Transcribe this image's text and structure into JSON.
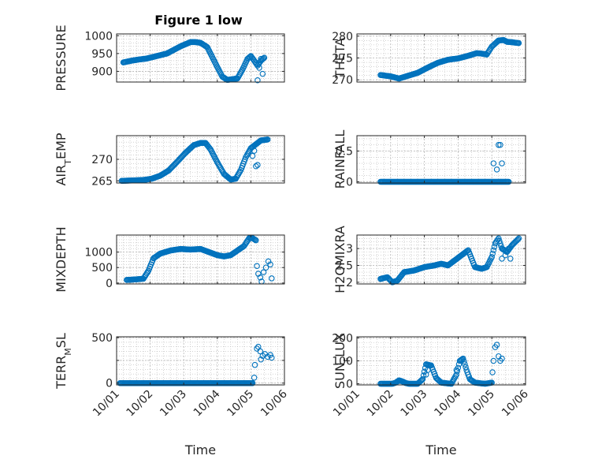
{
  "figure": {
    "title": "Figure 1 low"
  },
  "colors": {
    "marker": "#0072BD",
    "axis": "#262626",
    "grid": "#b8b8b8",
    "background": "#ffffff"
  },
  "chart_data": [
    {
      "type": "scatter",
      "ylabel": "PRESSURE",
      "ylim": [
        870,
        1005
      ],
      "yticks": [
        900,
        950,
        1000
      ],
      "ytick_labels": [
        "900",
        "950",
        "1000"
      ],
      "xlim": [
        0,
        5
      ],
      "xticks": [
        0,
        1,
        2,
        3,
        4,
        5
      ],
      "xtick_labels": [
        "10/01",
        "10/02",
        "10/03",
        "10/04",
        "10/05",
        "10/06"
      ],
      "show_xtick_labels": false,
      "xlabel": "",
      "grid": true,
      "anchors_x": [
        0.2,
        0.45,
        0.65,
        0.9,
        1.2,
        1.5,
        1.9,
        2.2,
        2.35,
        2.5,
        2.7,
        2.85,
        3.0,
        3.15,
        3.3,
        3.45,
        3.6,
        3.75,
        3.9,
        4.0,
        4.1,
        4.2,
        4.3,
        4.42
      ],
      "anchors_y": [
        925,
        930,
        933,
        936,
        943,
        950,
        970,
        982,
        982,
        980,
        968,
        940,
        912,
        885,
        876,
        878,
        880,
        905,
        935,
        943,
        930,
        916,
        930,
        940
      ],
      "extra_points": [
        [
          4.2,
          875
        ],
        [
          4.25,
          910
        ],
        [
          4.35,
          893
        ],
        [
          4.3,
          935
        ]
      ]
    },
    {
      "type": "scatter",
      "ylabel": "THETA",
      "ylim": [
        269.5,
        280.5
      ],
      "yticks": [
        270,
        275,
        280
      ],
      "ytick_labels": [
        "270",
        "275",
        "280"
      ],
      "xlim": [
        0,
        5
      ],
      "xticks": [
        0,
        1,
        2,
        3,
        4,
        5
      ],
      "xtick_labels": [
        "10/01",
        "10/02",
        "10/03",
        "10/04",
        "10/05",
        "10/06"
      ],
      "show_xtick_labels": false,
      "xlabel": "",
      "grid": true,
      "anchors_x": [
        0.7,
        1.0,
        1.25,
        1.5,
        1.8,
        2.1,
        2.4,
        2.7,
        3.0,
        3.3,
        3.55,
        3.7,
        3.85,
        4.0,
        4.2,
        4.35,
        4.45,
        4.6,
        4.8
      ],
      "anchors_y": [
        271.1,
        270.8,
        270.3,
        270.9,
        271.6,
        272.8,
        273.9,
        274.6,
        274.9,
        275.5,
        276.1,
        276.0,
        275.8,
        277.6,
        279.0,
        279.1,
        278.7,
        278.6,
        278.4
      ],
      "extra_points": []
    },
    {
      "type": "scatter",
      "ylabel": "AIR_TEMP",
      "ylim": [
        264.5,
        275.5
      ],
      "yticks": [
        265,
        270
      ],
      "ytick_labels": [
        "265",
        "270"
      ],
      "xlim": [
        0,
        5
      ],
      "xticks": [
        0,
        1,
        2,
        3,
        4,
        5
      ],
      "xtick_labels": [
        "10/01",
        "10/02",
        "10/03",
        "10/04",
        "10/05",
        "10/06"
      ],
      "show_xtick_labels": false,
      "xlabel": "",
      "grid": true,
      "anchors_x": [
        0.15,
        0.5,
        0.8,
        1.05,
        1.3,
        1.55,
        1.8,
        2.05,
        2.3,
        2.5,
        2.65,
        2.8,
        3.0,
        3.2,
        3.4,
        3.55,
        3.7,
        3.85,
        4.0,
        4.15,
        4.3,
        4.5
      ],
      "anchors_y": [
        265.0,
        265.1,
        265.2,
        265.5,
        266.2,
        267.4,
        269.4,
        271.5,
        273.3,
        273.8,
        273.8,
        272.3,
        269.3,
        266.6,
        265.3,
        265.5,
        267.5,
        270.5,
        272.6,
        273.5,
        274.4,
        274.6
      ],
      "extra_points": [
        [
          4.15,
          268.4
        ],
        [
          4.2,
          268.7
        ],
        [
          4.05,
          270.8
        ],
        [
          4.1,
          272.0
        ]
      ]
    },
    {
      "type": "scatter",
      "ylabel": "RAINFALL",
      "ylim": [
        -0.02,
        0.75
      ],
      "yticks": [
        0,
        0.5
      ],
      "ytick_labels": [
        "0",
        "0.5"
      ],
      "xlim": [
        0,
        5
      ],
      "xticks": [
        0,
        1,
        2,
        3,
        4,
        5
      ],
      "xtick_labels": [
        "10/01",
        "10/02",
        "10/03",
        "10/04",
        "10/05",
        "10/06"
      ],
      "show_xtick_labels": false,
      "xlabel": "",
      "grid": true,
      "anchors_x": [
        0.7,
        4.5
      ],
      "anchors_y": [
        0,
        0
      ],
      "extra_points": [
        [
          4.05,
          0.3
        ],
        [
          4.15,
          0.2
        ],
        [
          4.2,
          0.6
        ],
        [
          4.25,
          0.6
        ],
        [
          4.3,
          0.3
        ]
      ]
    },
    {
      "type": "scatter",
      "ylabel": "MIXDEPTH",
      "ylim": [
        -30,
        1550
      ],
      "yticks": [
        0,
        500,
        1000
      ],
      "ytick_labels": [
        "0",
        "500",
        "1000"
      ],
      "xlim": [
        0,
        5
      ],
      "xticks": [
        0,
        1,
        2,
        3,
        4,
        5
      ],
      "xtick_labels": [
        "10/01",
        "10/02",
        "10/03",
        "10/04",
        "10/05",
        "10/06"
      ],
      "show_xtick_labels": false,
      "xlabel": "",
      "grid": true,
      "anchors_x": [
        0.3,
        0.6,
        0.8,
        0.95,
        1.1,
        1.3,
        1.6,
        1.9,
        2.2,
        2.5,
        2.8,
        3.0,
        3.2,
        3.4,
        3.6,
        3.8,
        3.95,
        4.05,
        4.15
      ],
      "anchors_y": [
        100,
        120,
        140,
        400,
        800,
        950,
        1050,
        1100,
        1080,
        1100,
        980,
        900,
        860,
        900,
        1050,
        1200,
        1450,
        1450,
        1380
      ],
      "extra_points": [
        [
          4.18,
          550
        ],
        [
          4.22,
          300
        ],
        [
          4.28,
          180
        ],
        [
          4.32,
          50
        ],
        [
          4.38,
          350
        ],
        [
          4.45,
          500
        ],
        [
          4.52,
          700
        ],
        [
          4.58,
          600
        ],
        [
          4.62,
          150
        ]
      ]
    },
    {
      "type": "scatter",
      "ylabel": "H2OMIXRA",
      "ylim": [
        1.95,
        3.4
      ],
      "yticks": [
        2,
        2.5,
        3
      ],
      "ytick_labels": [
        "2",
        "2.5",
        "3"
      ],
      "xlim": [
        0,
        5
      ],
      "xticks": [
        0,
        1,
        2,
        3,
        4,
        5
      ],
      "xtick_labels": [
        "10/01",
        "10/02",
        "10/03",
        "10/04",
        "10/05",
        "10/06"
      ],
      "show_xtick_labels": false,
      "xlabel": "",
      "grid": true,
      "anchors_x": [
        0.7,
        0.9,
        1.05,
        1.2,
        1.4,
        1.7,
        2.0,
        2.3,
        2.5,
        2.7,
        2.9,
        3.1,
        3.3,
        3.5,
        3.7,
        3.85,
        4.0,
        4.1,
        4.2,
        4.3,
        4.45,
        4.6,
        4.8
      ],
      "anchors_y": [
        2.1,
        2.15,
        2.0,
        2.05,
        2.3,
        2.35,
        2.45,
        2.5,
        2.55,
        2.5,
        2.65,
        2.8,
        2.95,
        2.45,
        2.4,
        2.45,
        2.75,
        3.15,
        3.3,
        3.0,
        2.9,
        3.1,
        3.3
      ],
      "extra_points": [
        [
          4.3,
          2.7
        ],
        [
          4.4,
          2.8
        ],
        [
          4.5,
          3.0
        ],
        [
          4.55,
          2.7
        ]
      ]
    },
    {
      "type": "scatter",
      "ylabel": "TERR_MSL",
      "ylim": [
        -20,
        510
      ],
      "yticks": [
        0,
        250,
        500
      ],
      "ytick_labels": [
        "0",
        "",
        "500"
      ],
      "xlim": [
        0,
        5
      ],
      "xticks": [
        0,
        1,
        2,
        3,
        4,
        5
      ],
      "xtick_labels": [
        "10/01",
        "10/02",
        "10/03",
        "10/04",
        "10/05",
        "10/06"
      ],
      "show_xtick_labels": true,
      "xlabel": "Time",
      "grid": true,
      "anchors_x": [
        0.1,
        4.05
      ],
      "anchors_y": [
        0,
        0
      ],
      "extra_points": [
        [
          4.1,
          60
        ],
        [
          4.12,
          200
        ],
        [
          4.18,
          380
        ],
        [
          4.22,
          400
        ],
        [
          4.28,
          350
        ],
        [
          4.3,
          260
        ],
        [
          4.35,
          300
        ],
        [
          4.42,
          320
        ],
        [
          4.5,
          290
        ],
        [
          4.58,
          310
        ],
        [
          4.62,
          280
        ]
      ]
    },
    {
      "type": "scatter",
      "ylabel": "SUN_FLUX",
      "ylim": [
        -5,
        205
      ],
      "yticks": [
        0,
        100,
        200
      ],
      "ytick_labels": [
        "0",
        "100",
        "200"
      ],
      "xlim": [
        0,
        5
      ],
      "xticks": [
        0,
        1,
        2,
        3,
        4,
        5
      ],
      "xtick_labels": [
        "10/01",
        "10/02",
        "10/03",
        "10/04",
        "10/05",
        "10/06"
      ],
      "show_xtick_labels": true,
      "xlabel": "Time",
      "grid": true,
      "anchors_x": [
        0.7,
        1.05,
        1.15,
        1.25,
        1.35,
        1.45,
        1.55,
        1.8,
        1.95,
        2.05,
        2.2,
        2.35,
        2.5,
        2.8,
        2.95,
        3.05,
        3.15,
        3.25,
        3.35,
        3.5,
        3.8,
        4.0
      ],
      "anchors_y": [
        0,
        0,
        5,
        15,
        10,
        3,
        0,
        0,
        20,
        85,
        80,
        25,
        5,
        0,
        40,
        100,
        110,
        60,
        20,
        5,
        0,
        5
      ],
      "extra_points": [
        [
          2.05,
          40
        ],
        [
          2.1,
          60
        ],
        [
          2.95,
          60
        ],
        [
          4.02,
          50
        ],
        [
          4.05,
          100
        ],
        [
          4.1,
          160
        ],
        [
          4.15,
          170
        ],
        [
          4.2,
          120
        ],
        [
          4.25,
          100
        ],
        [
          4.3,
          110
        ]
      ]
    }
  ]
}
